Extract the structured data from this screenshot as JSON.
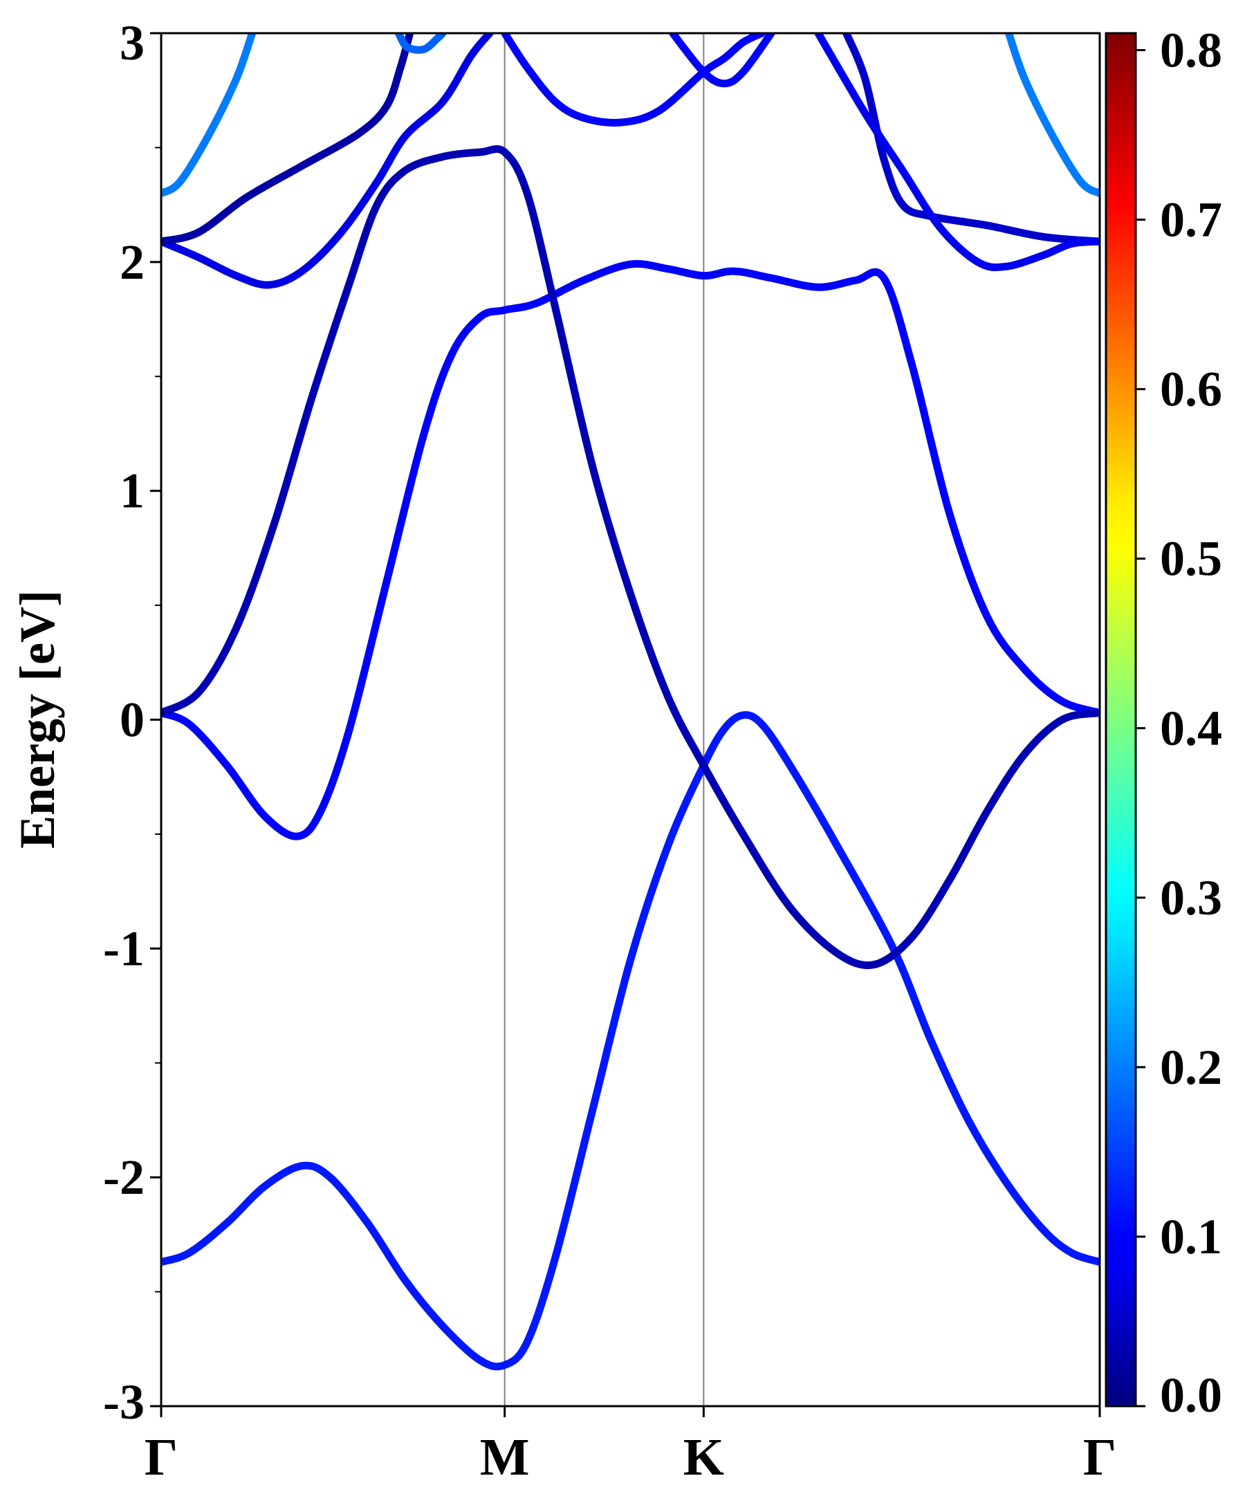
{
  "chart_data": {
    "type": "line",
    "title": "",
    "xlabel": "",
    "ylabel": "Energy [eV]",
    "ylim": [
      -3,
      3
    ],
    "xlim": [
      0,
      1
    ],
    "x_ticks": [
      {
        "label": "Γ",
        "x": 0.0
      },
      {
        "label": "M",
        "x": 0.366
      },
      {
        "label": "K",
        "x": 0.578
      },
      {
        "label": "Γ",
        "x": 1.0
      }
    ],
    "y_ticks": [
      -3,
      -2,
      -1,
      0,
      1,
      2,
      3
    ],
    "y_tick_labels": [
      "-3",
      "-2",
      "-1",
      "0",
      "1",
      "2",
      "3"
    ],
    "y_minor_ticks": [
      -2.5,
      -1.5,
      -0.5,
      0.5,
      1.5,
      2.5
    ],
    "vlines": [
      0.366,
      0.578
    ],
    "colorbar": {
      "colormap": "jet",
      "range": [
        0.0,
        0.81
      ],
      "ticks": [
        0.0,
        0.1,
        0.2,
        0.3,
        0.4,
        0.5,
        0.6,
        0.7,
        0.8
      ],
      "tick_labels": [
        "0.0",
        "0.1",
        "0.2",
        "0.3",
        "0.4",
        "0.5",
        "0.6",
        "0.7",
        "0.8"
      ]
    },
    "series": [
      {
        "weight": 0.12,
        "points": [
          [
            0.0,
            -2.37
          ],
          [
            0.03,
            -2.33
          ],
          [
            0.07,
            -2.2
          ],
          [
            0.11,
            -2.04
          ],
          [
            0.15,
            -1.95
          ],
          [
            0.18,
            -2.0
          ],
          [
            0.22,
            -2.2
          ],
          [
            0.26,
            -2.45
          ],
          [
            0.3,
            -2.65
          ],
          [
            0.34,
            -2.8
          ],
          [
            0.366,
            -2.82
          ],
          [
            0.39,
            -2.72
          ],
          [
            0.42,
            -2.35
          ],
          [
            0.46,
            -1.7
          ],
          [
            0.5,
            -1.05
          ],
          [
            0.54,
            -0.55
          ],
          [
            0.578,
            -0.2
          ],
          [
            0.6,
            -0.04
          ],
          [
            0.62,
            0.02
          ],
          [
            0.64,
            -0.02
          ],
          [
            0.67,
            -0.2
          ],
          [
            0.72,
            -0.55
          ],
          [
            0.78,
            -1.0
          ],
          [
            0.82,
            -1.4
          ],
          [
            0.86,
            -1.75
          ],
          [
            0.9,
            -2.02
          ],
          [
            0.94,
            -2.23
          ],
          [
            0.97,
            -2.33
          ],
          [
            1.0,
            -2.37
          ]
        ]
      },
      {
        "weight": 0.1,
        "points": [
          [
            0.0,
            0.03
          ],
          [
            0.03,
            -0.02
          ],
          [
            0.07,
            -0.2
          ],
          [
            0.11,
            -0.42
          ],
          [
            0.145,
            -0.51
          ],
          [
            0.17,
            -0.4
          ],
          [
            0.2,
            -0.05
          ],
          [
            0.24,
            0.6
          ],
          [
            0.28,
            1.25
          ],
          [
            0.31,
            1.6
          ],
          [
            0.34,
            1.76
          ],
          [
            0.366,
            1.79
          ],
          [
            0.4,
            1.82
          ],
          [
            0.45,
            1.92
          ],
          [
            0.5,
            1.99
          ],
          [
            0.54,
            1.97
          ],
          [
            0.578,
            1.94
          ],
          [
            0.61,
            1.96
          ],
          [
            0.65,
            1.93
          ],
          [
            0.7,
            1.89
          ],
          [
            0.74,
            1.92
          ],
          [
            0.77,
            1.93
          ],
          [
            0.8,
            1.55
          ],
          [
            0.84,
            0.9
          ],
          [
            0.88,
            0.45
          ],
          [
            0.92,
            0.22
          ],
          [
            0.96,
            0.08
          ],
          [
            1.0,
            0.03
          ]
        ]
      },
      {
        "weight": 0.04,
        "points": [
          [
            0.0,
            0.03
          ],
          [
            0.04,
            0.12
          ],
          [
            0.08,
            0.4
          ],
          [
            0.12,
            0.85
          ],
          [
            0.16,
            1.4
          ],
          [
            0.2,
            1.9
          ],
          [
            0.23,
            2.25
          ],
          [
            0.26,
            2.4
          ],
          [
            0.3,
            2.46
          ],
          [
            0.34,
            2.48
          ],
          [
            0.366,
            2.48
          ],
          [
            0.39,
            2.3
          ],
          [
            0.42,
            1.8
          ],
          [
            0.46,
            1.1
          ],
          [
            0.5,
            0.55
          ],
          [
            0.54,
            0.1
          ],
          [
            0.578,
            -0.2
          ],
          [
            0.62,
            -0.5
          ],
          [
            0.67,
            -0.82
          ],
          [
            0.72,
            -1.02
          ],
          [
            0.76,
            -1.07
          ],
          [
            0.8,
            -0.95
          ],
          [
            0.84,
            -0.7
          ],
          [
            0.88,
            -0.4
          ],
          [
            0.92,
            -0.15
          ],
          [
            0.96,
            0.0
          ],
          [
            1.0,
            0.03
          ]
        ]
      },
      {
        "weight": 0.08,
        "points": [
          [
            0.0,
            2.09
          ],
          [
            0.04,
            2.02
          ],
          [
            0.08,
            1.94
          ],
          [
            0.115,
            1.9
          ],
          [
            0.15,
            1.96
          ],
          [
            0.19,
            2.12
          ],
          [
            0.23,
            2.35
          ],
          [
            0.26,
            2.55
          ],
          [
            0.3,
            2.7
          ],
          [
            0.33,
            2.9
          ],
          [
            0.35,
            3.0
          ]
        ]
      },
      {
        "weight": 0.1,
        "points": [
          [
            0.366,
            3.0
          ],
          [
            0.39,
            2.85
          ],
          [
            0.42,
            2.7
          ],
          [
            0.45,
            2.63
          ],
          [
            0.49,
            2.61
          ],
          [
            0.53,
            2.66
          ],
          [
            0.578,
            2.83
          ],
          [
            0.6,
            2.89
          ],
          [
            0.62,
            2.96
          ],
          [
            0.64,
            3.0
          ]
        ]
      },
      {
        "weight": 0.03,
        "points": [
          [
            0.0,
            2.09
          ],
          [
            0.04,
            2.13
          ],
          [
            0.09,
            2.28
          ],
          [
            0.15,
            2.42
          ],
          [
            0.21,
            2.56
          ],
          [
            0.24,
            2.68
          ],
          [
            0.255,
            2.85
          ],
          [
            0.265,
            3.0
          ]
        ]
      },
      {
        "weight": 0.1,
        "points": [
          [
            0.545,
            3.0
          ],
          [
            0.578,
            2.83
          ],
          [
            0.6,
            2.78
          ],
          [
            0.62,
            2.83
          ],
          [
            0.65,
            3.0
          ]
        ]
      },
      {
        "weight": 0.06,
        "points": [
          [
            0.73,
            3.0
          ],
          [
            0.75,
            2.8
          ],
          [
            0.77,
            2.45
          ],
          [
            0.79,
            2.25
          ],
          [
            0.82,
            2.2
          ],
          [
            0.88,
            2.16
          ],
          [
            0.94,
            2.11
          ],
          [
            1.0,
            2.09
          ]
        ]
      },
      {
        "weight": 0.09,
        "points": [
          [
            0.7,
            3.0
          ],
          [
            0.75,
            2.65
          ],
          [
            0.79,
            2.4
          ],
          [
            0.83,
            2.15
          ],
          [
            0.87,
            2.0
          ],
          [
            0.9,
            1.98
          ],
          [
            0.94,
            2.03
          ],
          [
            0.97,
            2.08
          ],
          [
            1.0,
            2.09
          ]
        ]
      },
      {
        "weight": 0.2,
        "points": [
          [
            0.0,
            2.3
          ],
          [
            0.02,
            2.35
          ],
          [
            0.05,
            2.55
          ],
          [
            0.08,
            2.8
          ],
          [
            0.097,
            3.0
          ]
        ]
      },
      {
        "weight": 0.2,
        "points": [
          [
            0.903,
            3.0
          ],
          [
            0.92,
            2.8
          ],
          [
            0.95,
            2.55
          ],
          [
            0.98,
            2.35
          ],
          [
            1.0,
            2.3
          ]
        ]
      },
      {
        "weight": 0.18,
        "points": [
          [
            0.253,
            3.0
          ],
          [
            0.262,
            2.94
          ],
          [
            0.28,
            2.93
          ],
          [
            0.295,
            2.98
          ],
          [
            0.3,
            3.0
          ]
        ]
      }
    ]
  }
}
